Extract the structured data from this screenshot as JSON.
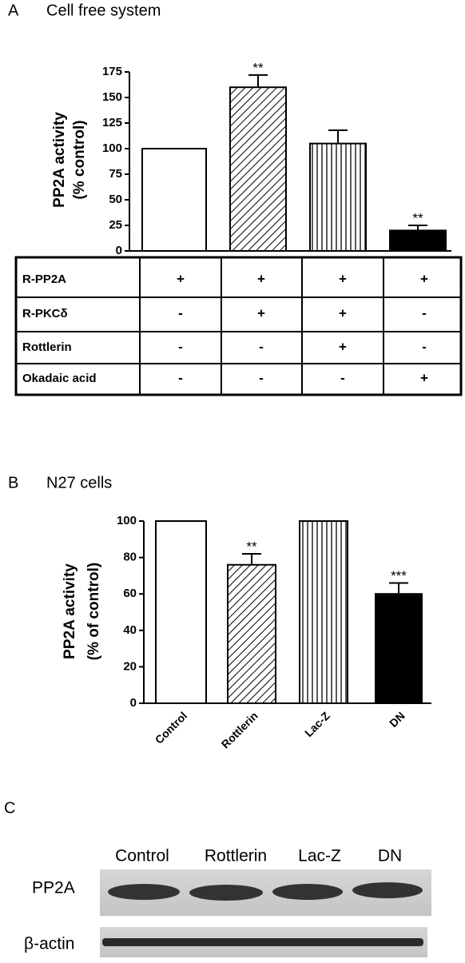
{
  "chart_data": [
    {
      "type": "bar",
      "panel": "A",
      "title": "Cell free system",
      "y_label": [
        "PP2A activity",
        "(% control)"
      ],
      "values": [
        100,
        160,
        105,
        20
      ],
      "errors": [
        null,
        12,
        13,
        5
      ],
      "value_annotations": [
        null,
        "**",
        null,
        "**"
      ],
      "patterns": [
        "none",
        "diagonal",
        "vertical",
        "solid"
      ],
      "color": "#000000",
      "ylim": [
        0,
        175
      ],
      "yticks": [
        0,
        25,
        50,
        75,
        100,
        125,
        150,
        175
      ]
    },
    {
      "type": "bar",
      "panel": "B",
      "title": "N27 cells",
      "y_label": [
        "PP2A activity",
        "(% of control)"
      ],
      "categories": [
        "Control",
        "Rottlerin",
        "Lac-Z",
        "DN"
      ],
      "values": [
        100,
        76,
        100,
        60
      ],
      "errors": [
        null,
        6,
        null,
        6
      ],
      "value_annotations": [
        null,
        "**",
        null,
        "***"
      ],
      "patterns": [
        "none",
        "diagonal",
        "vertical",
        "solid"
      ],
      "color": "#000000",
      "ylim": [
        0,
        100
      ],
      "yticks": [
        0,
        20,
        40,
        60,
        80,
        100
      ]
    }
  ],
  "table": {
    "rows": [
      [
        "R-PP2A",
        "+",
        "+",
        "+",
        "+"
      ],
      [
        "R-PKCδ",
        "-",
        "+",
        "+",
        "-"
      ],
      [
        "Rottlerin",
        "-",
        "-",
        "+",
        "-"
      ],
      [
        "Okadaic acid",
        "-",
        "-",
        "-",
        "+"
      ]
    ]
  },
  "blot": {
    "panel": "C",
    "lanes": [
      "Control",
      "Rottlerin",
      "Lac-Z",
      "DN"
    ],
    "rows": [
      "PP2A",
      "β-actin"
    ]
  }
}
